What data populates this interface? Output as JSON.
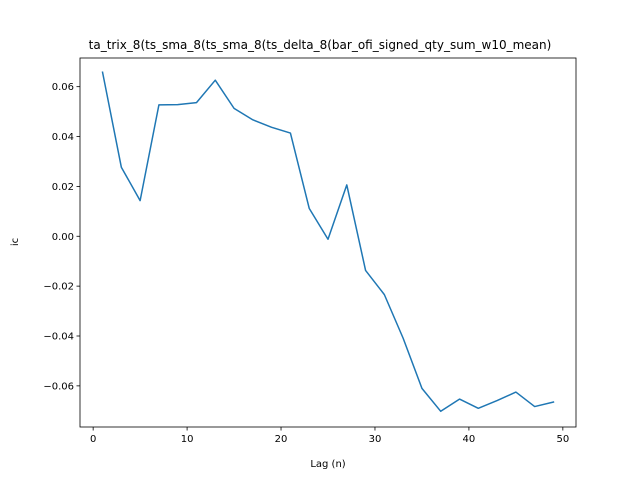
{
  "chart_data": {
    "type": "line",
    "title": "ta_trix_8(ts_sma_8(ts_sma_8(ts_delta_8(bar_ofi_signed_qty_sum_w10_mean)",
    "xlabel": "Lag (n)",
    "ylabel": "ic",
    "xlim": [
      -1.4,
      51.4
    ],
    "ylim": [
      -0.0765,
      0.0715
    ],
    "xticks": [
      0,
      10,
      20,
      30,
      40,
      50
    ],
    "yticks": [
      -0.06,
      -0.04,
      -0.02,
      0.0,
      0.02,
      0.04,
      0.06
    ],
    "ytick_labels": [
      "−0.06",
      "−0.04",
      "−0.02",
      "0.00",
      "0.02",
      "0.04",
      "0.06"
    ],
    "grid": false,
    "series": [
      {
        "color": "#1f77b4",
        "x": [
          1,
          3,
          5,
          7,
          9,
          11,
          13,
          15,
          17,
          19,
          21,
          23,
          25,
          27,
          29,
          31,
          33,
          35,
          37,
          39,
          41,
          43,
          45,
          47,
          49
        ],
        "y": [
          0.0658,
          0.0277,
          0.0143,
          0.0527,
          0.0528,
          0.0536,
          0.0626,
          0.0513,
          0.0467,
          0.0437,
          0.0414,
          0.0112,
          -0.0012,
          0.0206,
          -0.0137,
          -0.0234,
          -0.0409,
          -0.061,
          -0.0702,
          -0.0653,
          -0.069,
          -0.0659,
          -0.0625,
          -0.0683,
          -0.0665
        ]
      }
    ]
  }
}
